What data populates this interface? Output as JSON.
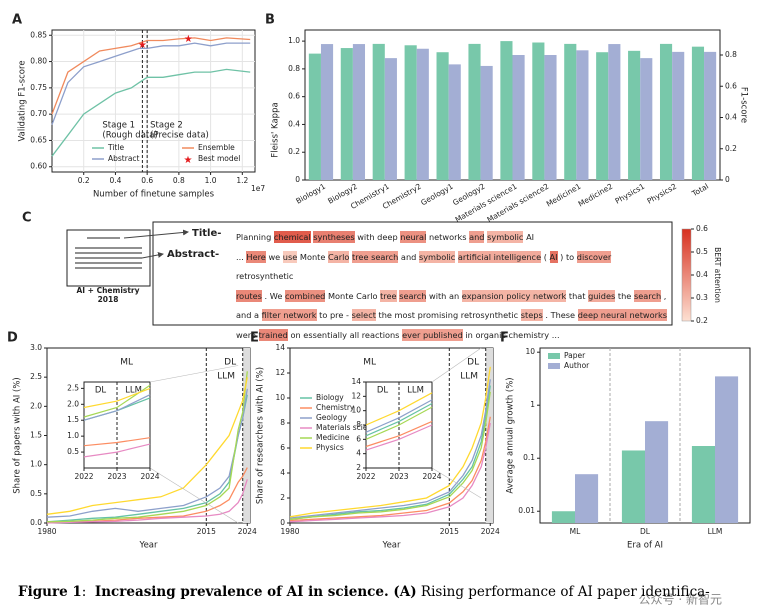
{
  "chart_data": [
    {
      "type": "line",
      "panel": "A",
      "xlabel": "Number of finetune samples",
      "ylabel": "Validating F1-score",
      "x_offset_label": "1e7",
      "x": [
        0,
        1000000,
        2000000,
        3000000,
        4000000,
        5000000,
        5500000,
        6000000,
        7000000,
        8000000,
        9000000,
        10000000,
        11000000,
        12500000
      ],
      "series": [
        {
          "name": "Title",
          "color": "#6fc2a6",
          "values": [
            0.62,
            0.66,
            0.7,
            0.72,
            0.74,
            0.75,
            0.76,
            0.77,
            0.77,
            0.775,
            0.78,
            0.78,
            0.785,
            0.78
          ]
        },
        {
          "name": "Abstract",
          "color": "#8d9fcb",
          "values": [
            0.68,
            0.76,
            0.79,
            0.8,
            0.81,
            0.82,
            0.825,
            0.825,
            0.83,
            0.83,
            0.835,
            0.83,
            0.835,
            0.835
          ]
        },
        {
          "name": "Ensemble",
          "color": "#f08a5d",
          "values": [
            0.7,
            0.78,
            0.8,
            0.82,
            0.825,
            0.83,
            0.835,
            0.84,
            0.84,
            0.843,
            0.845,
            0.84,
            0.845,
            0.842
          ]
        }
      ],
      "markers": {
        "name": "Best model",
        "color": "#e41a1c",
        "x": [
          5700000,
          8600000
        ],
        "y": [
          0.833,
          0.845
        ]
      },
      "vlines": [
        5700000,
        6000000
      ],
      "annotations": [
        "Stage 1",
        "(Rough data)",
        "Stage 2",
        "(Precise data)"
      ],
      "xlim": [
        0,
        12800000
      ],
      "ylim": [
        0.59,
        0.86
      ],
      "xticks": [
        {
          "value": 2000000,
          "label": "0.2"
        },
        {
          "value": 4000000,
          "label": "0.4"
        },
        {
          "value": 6000000,
          "label": "0.6"
        },
        {
          "value": 8000000,
          "label": "0.8"
        },
        {
          "value": 10000000,
          "label": "1.0"
        },
        {
          "value": 12000000,
          "label": "1.2"
        }
      ],
      "yticks": [
        {
          "value": 0.6,
          "label": "0.60"
        },
        0.65,
        {
          "value": 0.7,
          "label": "0.70"
        },
        0.75,
        {
          "value": 0.8,
          "label": "0.80"
        },
        0.85
      ],
      "grid": true,
      "legend": "lower right"
    },
    {
      "type": "bar",
      "panel": "B",
      "ylabel": "Fleiss' Kappa",
      "y2label": "F1-score",
      "categories": [
        "Biology1",
        "Biology2",
        "Chemistry1",
        "Chemistry2",
        "Geology1",
        "Geology2",
        "Materials science1",
        "Materials science2",
        "Medicine1",
        "Medicine2",
        "Physics1",
        "Physics2",
        "Total"
      ],
      "series": [
        {
          "color": "#78c8aa",
          "values": [
            0.91,
            0.95,
            0.98,
            0.97,
            0.92,
            0.98,
            1.0,
            0.99,
            0.98,
            0.92,
            0.93,
            0.98,
            0.96
          ]
        },
        {
          "color": "#a3aed4",
          "axis": "y2",
          "values": [
            0.87,
            0.87,
            0.78,
            0.84,
            0.74,
            0.73,
            0.8,
            0.8,
            0.83,
            0.87,
            0.78,
            0.82,
            0.82
          ]
        }
      ],
      "ylim": [
        0,
        1.08
      ],
      "yticks": [
        0,
        0.2,
        0.4,
        0.6,
        0.8,
        {
          "value": 1,
          "label": "1.0"
        }
      ],
      "y2lim": [
        0,
        0.96
      ],
      "y2ticks": [
        0,
        0.2,
        0.4,
        0.6,
        0.8
      ]
    },
    {
      "type": "line",
      "panel": "D",
      "xlabel": "Year",
      "ylabel": "Share of papers with AI (%)",
      "x": [
        1980,
        1985,
        1990,
        1995,
        2000,
        2005,
        2010,
        2015,
        2018,
        2020,
        2022,
        2023,
        2024
      ],
      "series": [
        {
          "color": "#66c2a5",
          "values": [
            0.02,
            0.05,
            0.08,
            0.1,
            0.15,
            0.2,
            0.25,
            0.35,
            0.5,
            0.7,
            1.5,
            1.8,
            2.2
          ]
        },
        {
          "color": "#fc8d62",
          "values": [
            0.01,
            0.02,
            0.03,
            0.05,
            0.08,
            0.1,
            0.12,
            0.2,
            0.3,
            0.4,
            0.7,
            0.8,
            0.95
          ]
        },
        {
          "color": "#8da0cb",
          "values": [
            0.1,
            0.12,
            0.2,
            0.25,
            0.2,
            0.25,
            0.3,
            0.45,
            0.6,
            0.8,
            1.5,
            1.8,
            2.3
          ]
        },
        {
          "color": "#e78ac3",
          "values": [
            0,
            0.01,
            0.02,
            0.03,
            0.05,
            0.08,
            0.1,
            0.12,
            0.15,
            0.2,
            0.35,
            0.5,
            0.75
          ]
        },
        {
          "color": "#a6d854",
          "values": [
            0.02,
            0.03,
            0.05,
            0.08,
            0.1,
            0.15,
            0.2,
            0.3,
            0.45,
            0.6,
            1.6,
            1.9,
            2.6
          ]
        },
        {
          "color": "#ffd92f",
          "values": [
            0.15,
            0.2,
            0.3,
            0.35,
            0.4,
            0.45,
            0.6,
            1.0,
            1.3,
            1.5,
            1.9,
            2.1,
            2.5
          ]
        }
      ],
      "vlines": [
        2015,
        2023
      ],
      "annotations": [
        "ML",
        "DL",
        "LLM"
      ],
      "xlim": [
        1980,
        2024.6
      ],
      "ylim": [
        0,
        3
      ],
      "xticks": [
        1980,
        2015,
        2024
      ],
      "yticks": [
        {
          "value": 0,
          "label": "0.0"
        },
        0.5,
        {
          "value": 1,
          "label": "1.0"
        },
        1.5,
        {
          "value": 2,
          "label": "2.0"
        },
        2.5,
        {
          "value": 3,
          "label": "3.0"
        }
      ],
      "inset": {
        "xlim": [
          2022,
          2024
        ],
        "ylim": [
          0,
          2.7
        ],
        "xticks": [
          2022,
          2023,
          2024
        ],
        "yticks": [
          0.5,
          {
            "value": 1,
            "label": "1.0"
          },
          1.5,
          {
            "value": 2,
            "label": "2.0"
          },
          2.5
        ],
        "annotations": [
          "DL",
          "LLM"
        ]
      }
    },
    {
      "type": "line",
      "panel": "E",
      "xlabel": "Year",
      "ylabel": "Share of researchers with AI (%)",
      "x": [
        1980,
        1985,
        1990,
        1995,
        2000,
        2005,
        2010,
        2015,
        2018,
        2020,
        2022,
        2023,
        2024
      ],
      "series": [
        {
          "name": "Biology",
          "color": "#66c2a5",
          "values": [
            0.3,
            0.5,
            0.7,
            0.9,
            1.0,
            1.2,
            1.5,
            2.3,
            3.5,
            4.5,
            6.5,
            8.5,
            11
          ]
        },
        {
          "name": "Chemistry",
          "color": "#fc8d62",
          "values": [
            0.2,
            0.3,
            0.4,
            0.5,
            0.6,
            0.8,
            1.0,
            1.6,
            2.5,
            3.4,
            5,
            6.5,
            8.5
          ]
        },
        {
          "name": "Geology",
          "color": "#8da0cb",
          "values": [
            0.4,
            0.6,
            0.8,
            1.0,
            1.2,
            1.4,
            1.7,
            2.5,
            3.8,
            5,
            7,
            9,
            11.5
          ]
        },
        {
          "name": "Materials science",
          "color": "#e78ac3",
          "values": [
            0.1,
            0.2,
            0.3,
            0.4,
            0.5,
            0.6,
            0.8,
            1.3,
            2,
            3,
            4.5,
            6,
            8
          ]
        },
        {
          "name": "Medicine",
          "color": "#a6d854",
          "values": [
            0.3,
            0.5,
            0.6,
            0.8,
            0.9,
            1.1,
            1.4,
            2.1,
            3.2,
            4.2,
            6,
            8,
            10.5
          ]
        },
        {
          "name": "Physics",
          "color": "#ffd92f",
          "values": [
            0.5,
            0.8,
            1.0,
            1.2,
            1.4,
            1.7,
            2.0,
            3.0,
            4.5,
            6,
            8,
            10,
            12.5
          ]
        }
      ],
      "vlines": [
        2015,
        2023
      ],
      "annotations": [
        "ML",
        "DL",
        "LLM"
      ],
      "xlim": [
        1980,
        2024.6
      ],
      "ylim": [
        0,
        14
      ],
      "xticks": [
        1980,
        2015,
        2024
      ],
      "yticks": [
        0,
        2,
        4,
        6,
        8,
        10,
        12,
        14
      ],
      "legend": "upper left",
      "inset": {
        "xlim": [
          2022,
          2024
        ],
        "ylim": [
          2,
          14
        ],
        "xticks": [
          2022,
          2023,
          2024
        ],
        "yticks": [
          2,
          4,
          6,
          8,
          10,
          12,
          14
        ],
        "annotations": [
          "DL",
          "LLM"
        ]
      }
    },
    {
      "type": "bar",
      "panel": "F",
      "xlabel": "Era of AI",
      "ylabel": "Average annual growth (%)",
      "log_y": true,
      "categories": [
        "ML",
        "DL",
        "LLM"
      ],
      "series": [
        {
          "name": "Paper",
          "color": "#78c8aa",
          "values": [
            0.01,
            0.14,
            0.17
          ]
        },
        {
          "name": "Author",
          "color": "#a3aed4",
          "values": [
            0.05,
            0.5,
            3.5
          ]
        }
      ],
      "ylim": [
        0.006,
        12
      ],
      "yticks": [
        0.01,
        0.1,
        1,
        10
      ],
      "legend": "upper left"
    }
  ],
  "panel_c": {
    "panel": "C",
    "doc_label": "AI + Chemistry",
    "doc_year": "2018",
    "title_label": "Title-",
    "abstract_label": "Abstract-",
    "colorbar": {
      "label": "BERT attention",
      "lim": [
        0.2,
        0.6
      ],
      "ticks": [
        0.2,
        0.3,
        0.4,
        0.5,
        0.6
      ]
    },
    "lines": [
      [
        "Planning",
        {
          "text": "chemical",
          "attention": 0.5
        },
        {
          "text": "syntheses",
          "attention": 0.42
        },
        "with deep",
        {
          "text": "neural",
          "attention": 0.38
        },
        "networks",
        {
          "text": "and",
          "attention": 0.35
        },
        {
          "text": "symbolic",
          "attention": 0.3
        },
        "AI"
      ],
      [
        "...",
        {
          "text": "Here",
          "attention": 0.4
        },
        "we",
        {
          "text": "use",
          "attention": 0.25
        },
        "Monte",
        {
          "text": "Carlo",
          "attention": 0.3
        },
        {
          "text": "tree search",
          "attention": 0.35
        },
        "and",
        {
          "text": "symbolic",
          "attention": 0.3
        },
        {
          "text": "artificial intelligence",
          "attention": 0.32
        },
        "(",
        {
          "text": "AI",
          "attention": 0.45
        },
        ") to",
        {
          "text": "discover",
          "attention": 0.35
        },
        "retrosynthetic"
      ],
      [
        {
          "text": "routes",
          "attention": 0.4
        },
        ". We",
        {
          "text": "combined",
          "attention": 0.38
        },
        "Monte Carlo",
        {
          "text": "tree",
          "attention": 0.3
        },
        {
          "text": "search",
          "attention": 0.35
        },
        "with an",
        {
          "text": "expansion policy network",
          "attention": 0.3
        },
        "that",
        {
          "text": "guides",
          "attention": 0.32
        },
        "the",
        {
          "text": "search",
          "attention": 0.35
        },
        ","
      ],
      [
        "and a",
        {
          "text": "filter network",
          "attention": 0.35
        },
        "to pre -",
        {
          "text": "select",
          "attention": 0.3
        },
        "the most promising retrosynthetic",
        {
          "text": "steps",
          "attention": 0.3
        },
        ". These",
        {
          "text": "deep neural networks",
          "attention": 0.35
        }
      ],
      [
        "were",
        {
          "text": "trained",
          "attention": 0.4
        },
        "on essentially all reactions",
        {
          "text": "ever published",
          "attention": 0.35
        },
        "in organic chemistry ..."
      ]
    ]
  },
  "caption": [
    {
      "text": "Figure 1",
      "bold": true
    },
    {
      "text": ":  ",
      "bold": false
    },
    {
      "text": "Increasing prevalence of AI in science.",
      "bold": true
    },
    {
      "text": " (A)",
      "bold": true
    },
    {
      "text": " Rising performance of AI paper identifica-",
      "bold": false
    }
  ],
  "watermark": "公众号 · 新智元"
}
